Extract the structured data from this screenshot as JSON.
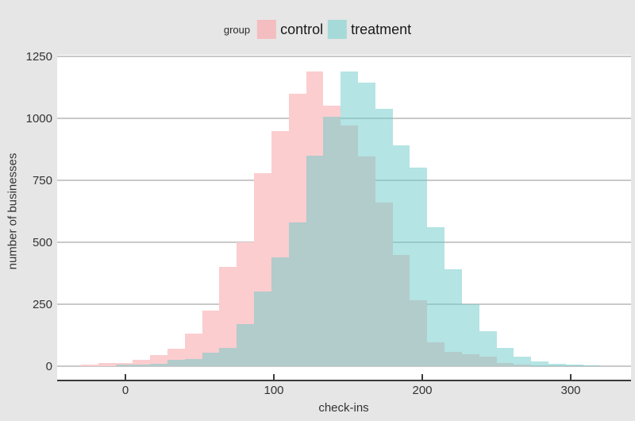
{
  "legend": {
    "title": "group",
    "items": [
      {
        "label": "control",
        "swatch_color": "#f4bdc0"
      },
      {
        "label": "treatment",
        "swatch_color": "#a5dad8"
      }
    ]
  },
  "axes": {
    "xlabel": "check-ins",
    "ylabel": "number of businesses"
  },
  "colors": {
    "background": "#e6e6e6",
    "panel": "#ffffff",
    "gridline": "#c9c9c9",
    "axis_line": "#3a3a3a",
    "control_fill": "#fbcdcf",
    "treatment_fill_rgba": "rgba(105,201,199,0.5)",
    "overlap_observed": "#b2c5c5"
  },
  "chart_data": {
    "type": "bar",
    "subtype": "overlaid-histogram",
    "title": "",
    "xlabel": "check-ins",
    "ylabel": "number of businesses",
    "legend_title": "group",
    "legend_position": "top",
    "grid": "horizontal-only",
    "bin_start": -30,
    "bin_width": 11.667,
    "n_bins": 30,
    "x_ticks": [
      0,
      100,
      200,
      300
    ],
    "y_ticks": [
      0,
      250,
      500,
      750,
      1000,
      1250
    ],
    "xlim": [
      -46,
      341
    ],
    "ylim": [
      -51,
      1256
    ],
    "series": [
      {
        "name": "control",
        "color": "#fbcdcf",
        "values": [
          8,
          12,
          12,
          25,
          45,
          70,
          130,
          225,
          400,
          500,
          780,
          950,
          1100,
          1190,
          1050,
          970,
          845,
          660,
          450,
          265,
          95,
          58,
          48,
          40,
          12,
          5,
          0,
          0,
          0,
          0
        ]
      },
      {
        "name": "treatment",
        "color": "rgba(105,201,199,0.5)",
        "values": [
          0,
          0,
          5,
          6,
          10,
          25,
          30,
          55,
          75,
          170,
          300,
          440,
          580,
          850,
          1005,
          1190,
          1145,
          1040,
          890,
          800,
          560,
          390,
          250,
          140,
          75,
          38,
          20,
          10,
          6,
          4
        ]
      }
    ]
  }
}
